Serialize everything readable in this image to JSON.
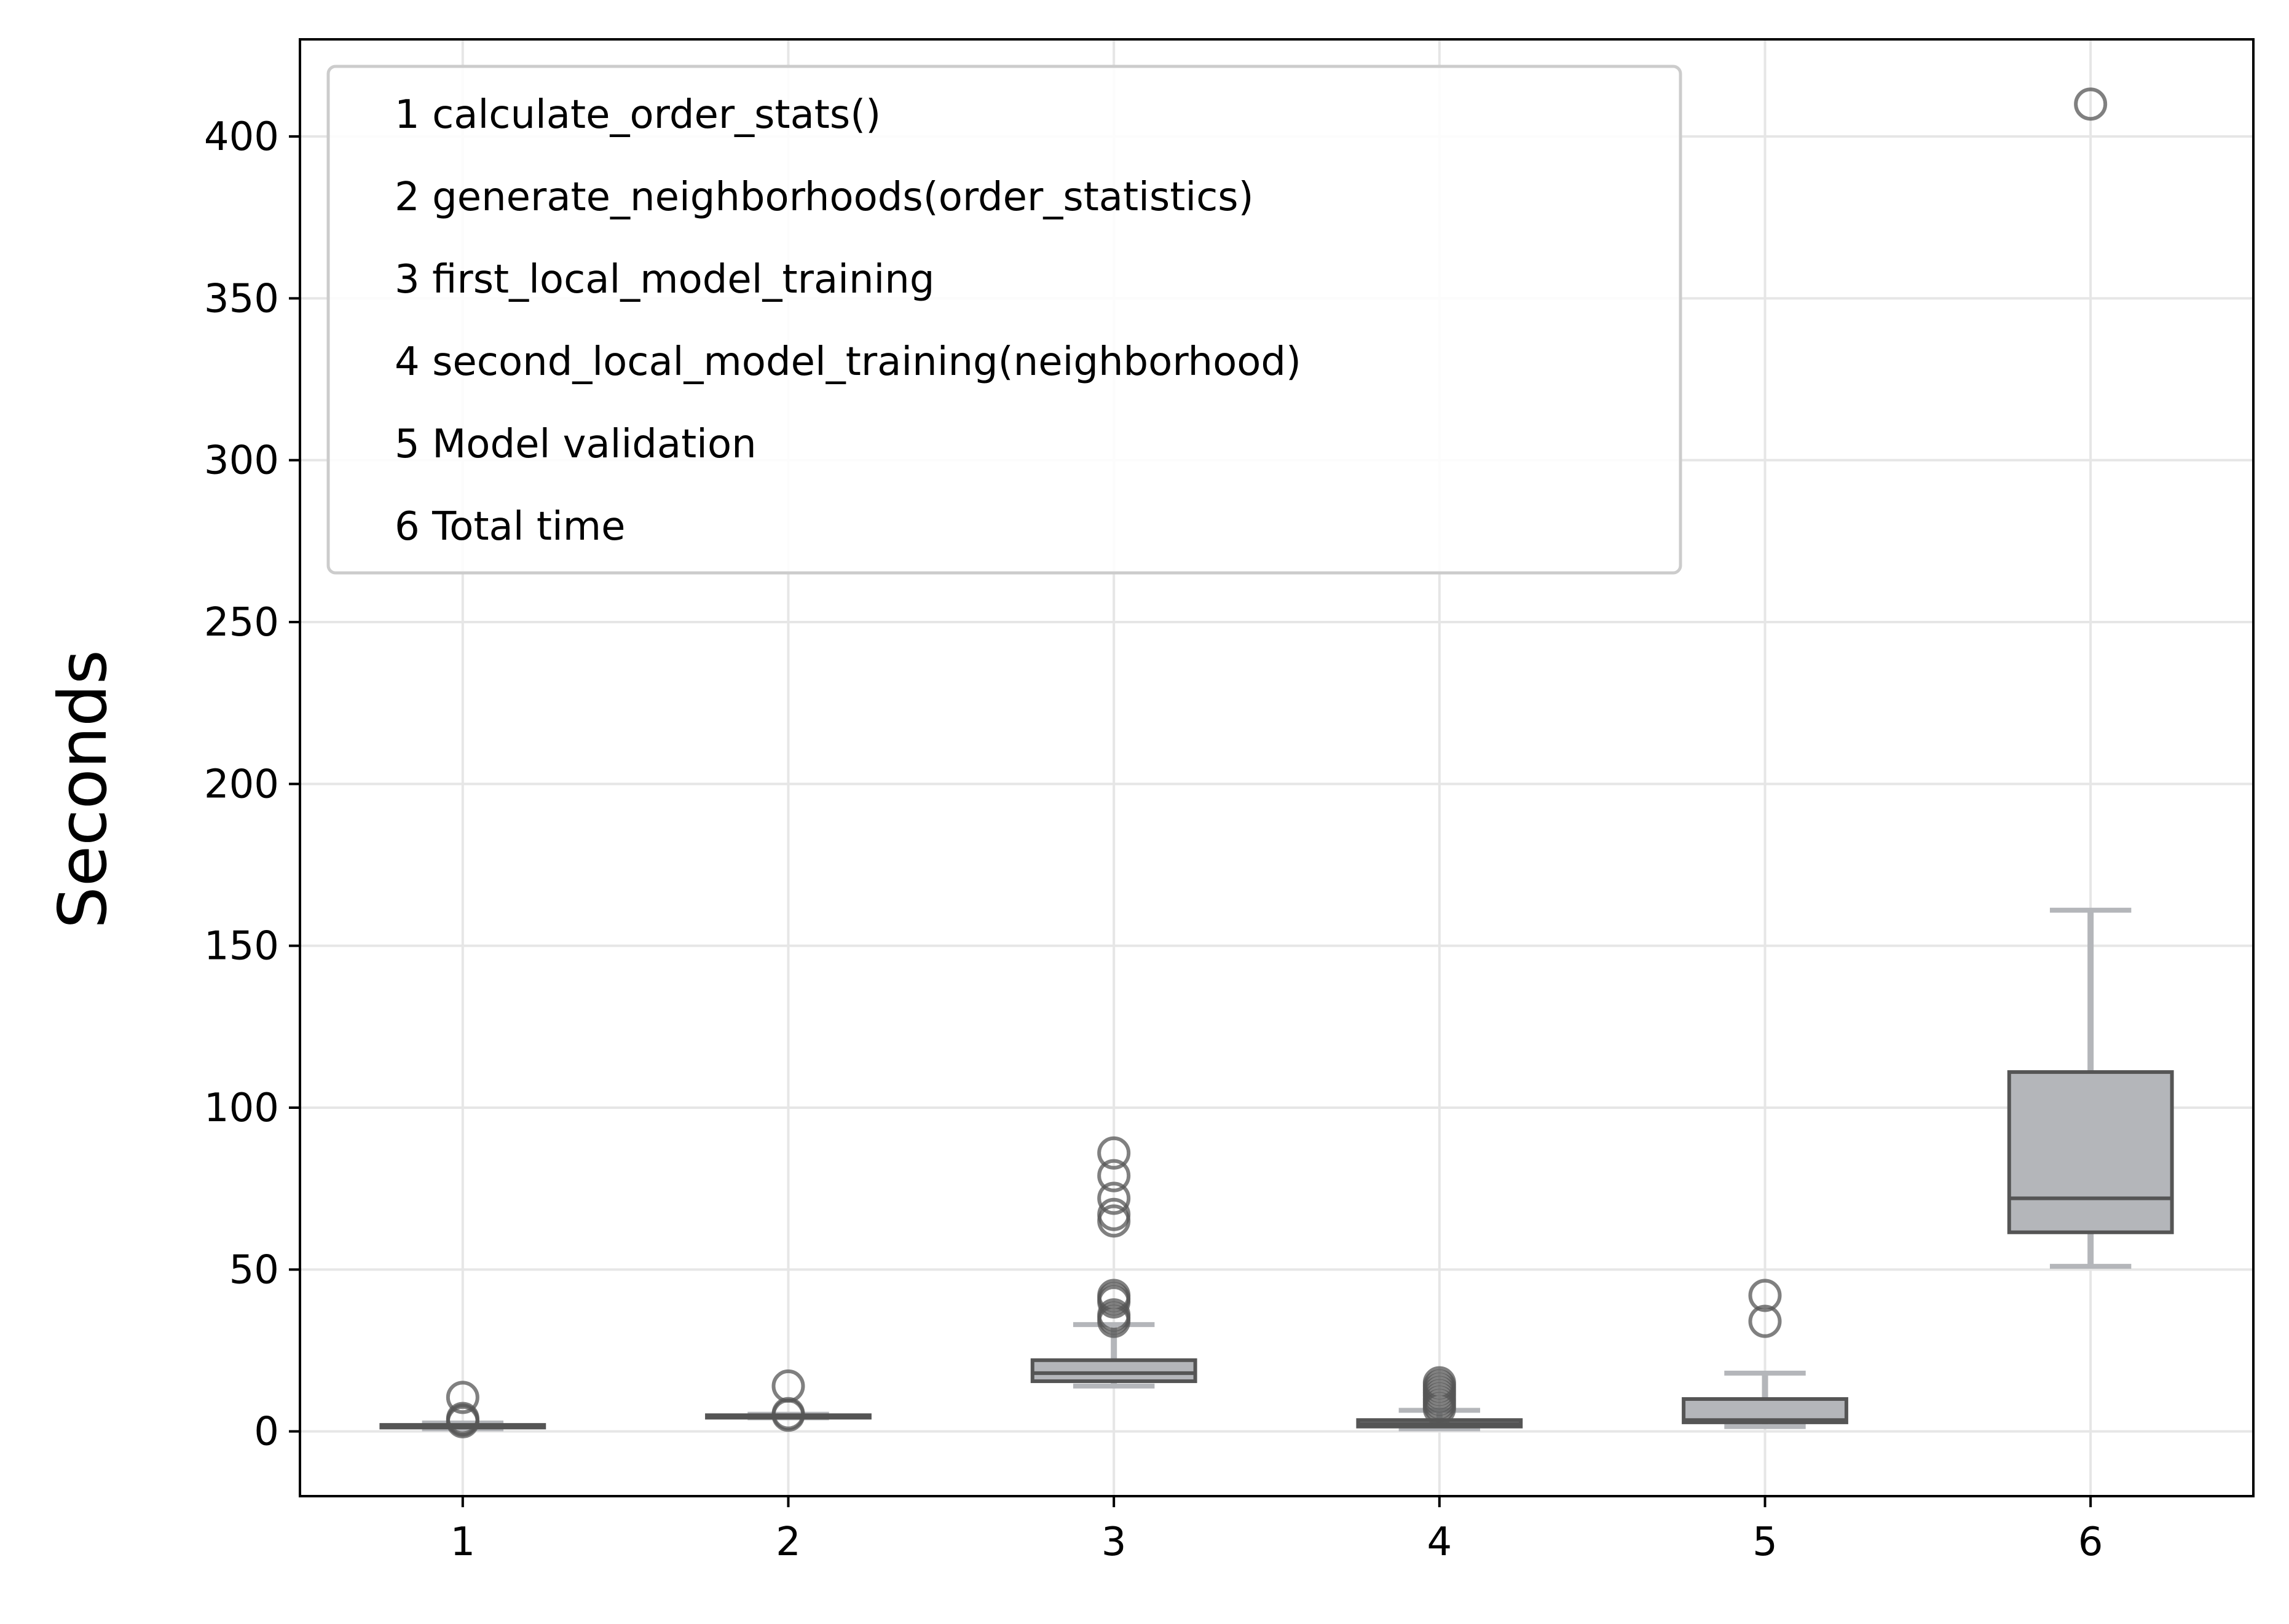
{
  "chart_data": {
    "type": "box",
    "title": "",
    "xlabel": "",
    "ylabel": "Seconds",
    "ylim": [
      -20,
      430
    ],
    "xlim": [
      0.5,
      6.5
    ],
    "x_ticks": [
      "1",
      "2",
      "3",
      "4",
      "5",
      "6"
    ],
    "y_ticks": [
      0,
      50,
      100,
      150,
      200,
      250,
      300,
      350,
      400
    ],
    "grid": true,
    "legend_position": "top-left",
    "legend": [
      "1 calculate_order_stats()",
      "2 generate_neighborhoods(order_statistics)",
      "3 first_local_model_training",
      "4 second_local_model_training(neighborhood)",
      "5 Model validation",
      "6 Total time"
    ],
    "colors": {
      "box_fill": "#b4b6ba",
      "box_edge": "#555555",
      "whisker": "#b4b6ba",
      "outlier": "#555555",
      "grid": "#e6e6e6"
    },
    "boxes": [
      {
        "x": 1,
        "whisker_low": 0.8,
        "q1": 1.2,
        "median": 1.6,
        "q3": 2.0,
        "whisker_high": 2.6,
        "outliers": [
          3.0,
          3.5,
          4.0,
          10.5
        ]
      },
      {
        "x": 2,
        "whisker_low": 4.2,
        "q1": 4.5,
        "median": 4.8,
        "q3": 5.0,
        "whisker_high": 5.3,
        "outliers": [
          5.0,
          5.5,
          14.0
        ]
      },
      {
        "x": 3,
        "whisker_low": 14,
        "q1": 15.5,
        "median": 18,
        "q3": 22,
        "whisker_high": 33,
        "outliers": [
          34,
          35,
          36,
          40,
          41,
          42,
          65,
          67,
          72,
          79,
          86
        ]
      },
      {
        "x": 4,
        "whisker_low": 0.8,
        "q1": 1.5,
        "median": 2.3,
        "q3": 3.5,
        "whisker_high": 6.5,
        "outliers": [
          7,
          8,
          9,
          10,
          11,
          12,
          13,
          14,
          15
        ]
      },
      {
        "x": 5,
        "whisker_low": 1.5,
        "q1": 2.8,
        "median": 3.5,
        "q3": 10,
        "whisker_high": 18,
        "outliers": [
          34,
          42
        ]
      },
      {
        "x": 6,
        "whisker_low": 51,
        "q1": 61.5,
        "median": 72,
        "q3": 111,
        "whisker_high": 161,
        "outliers": [
          410
        ]
      }
    ]
  }
}
